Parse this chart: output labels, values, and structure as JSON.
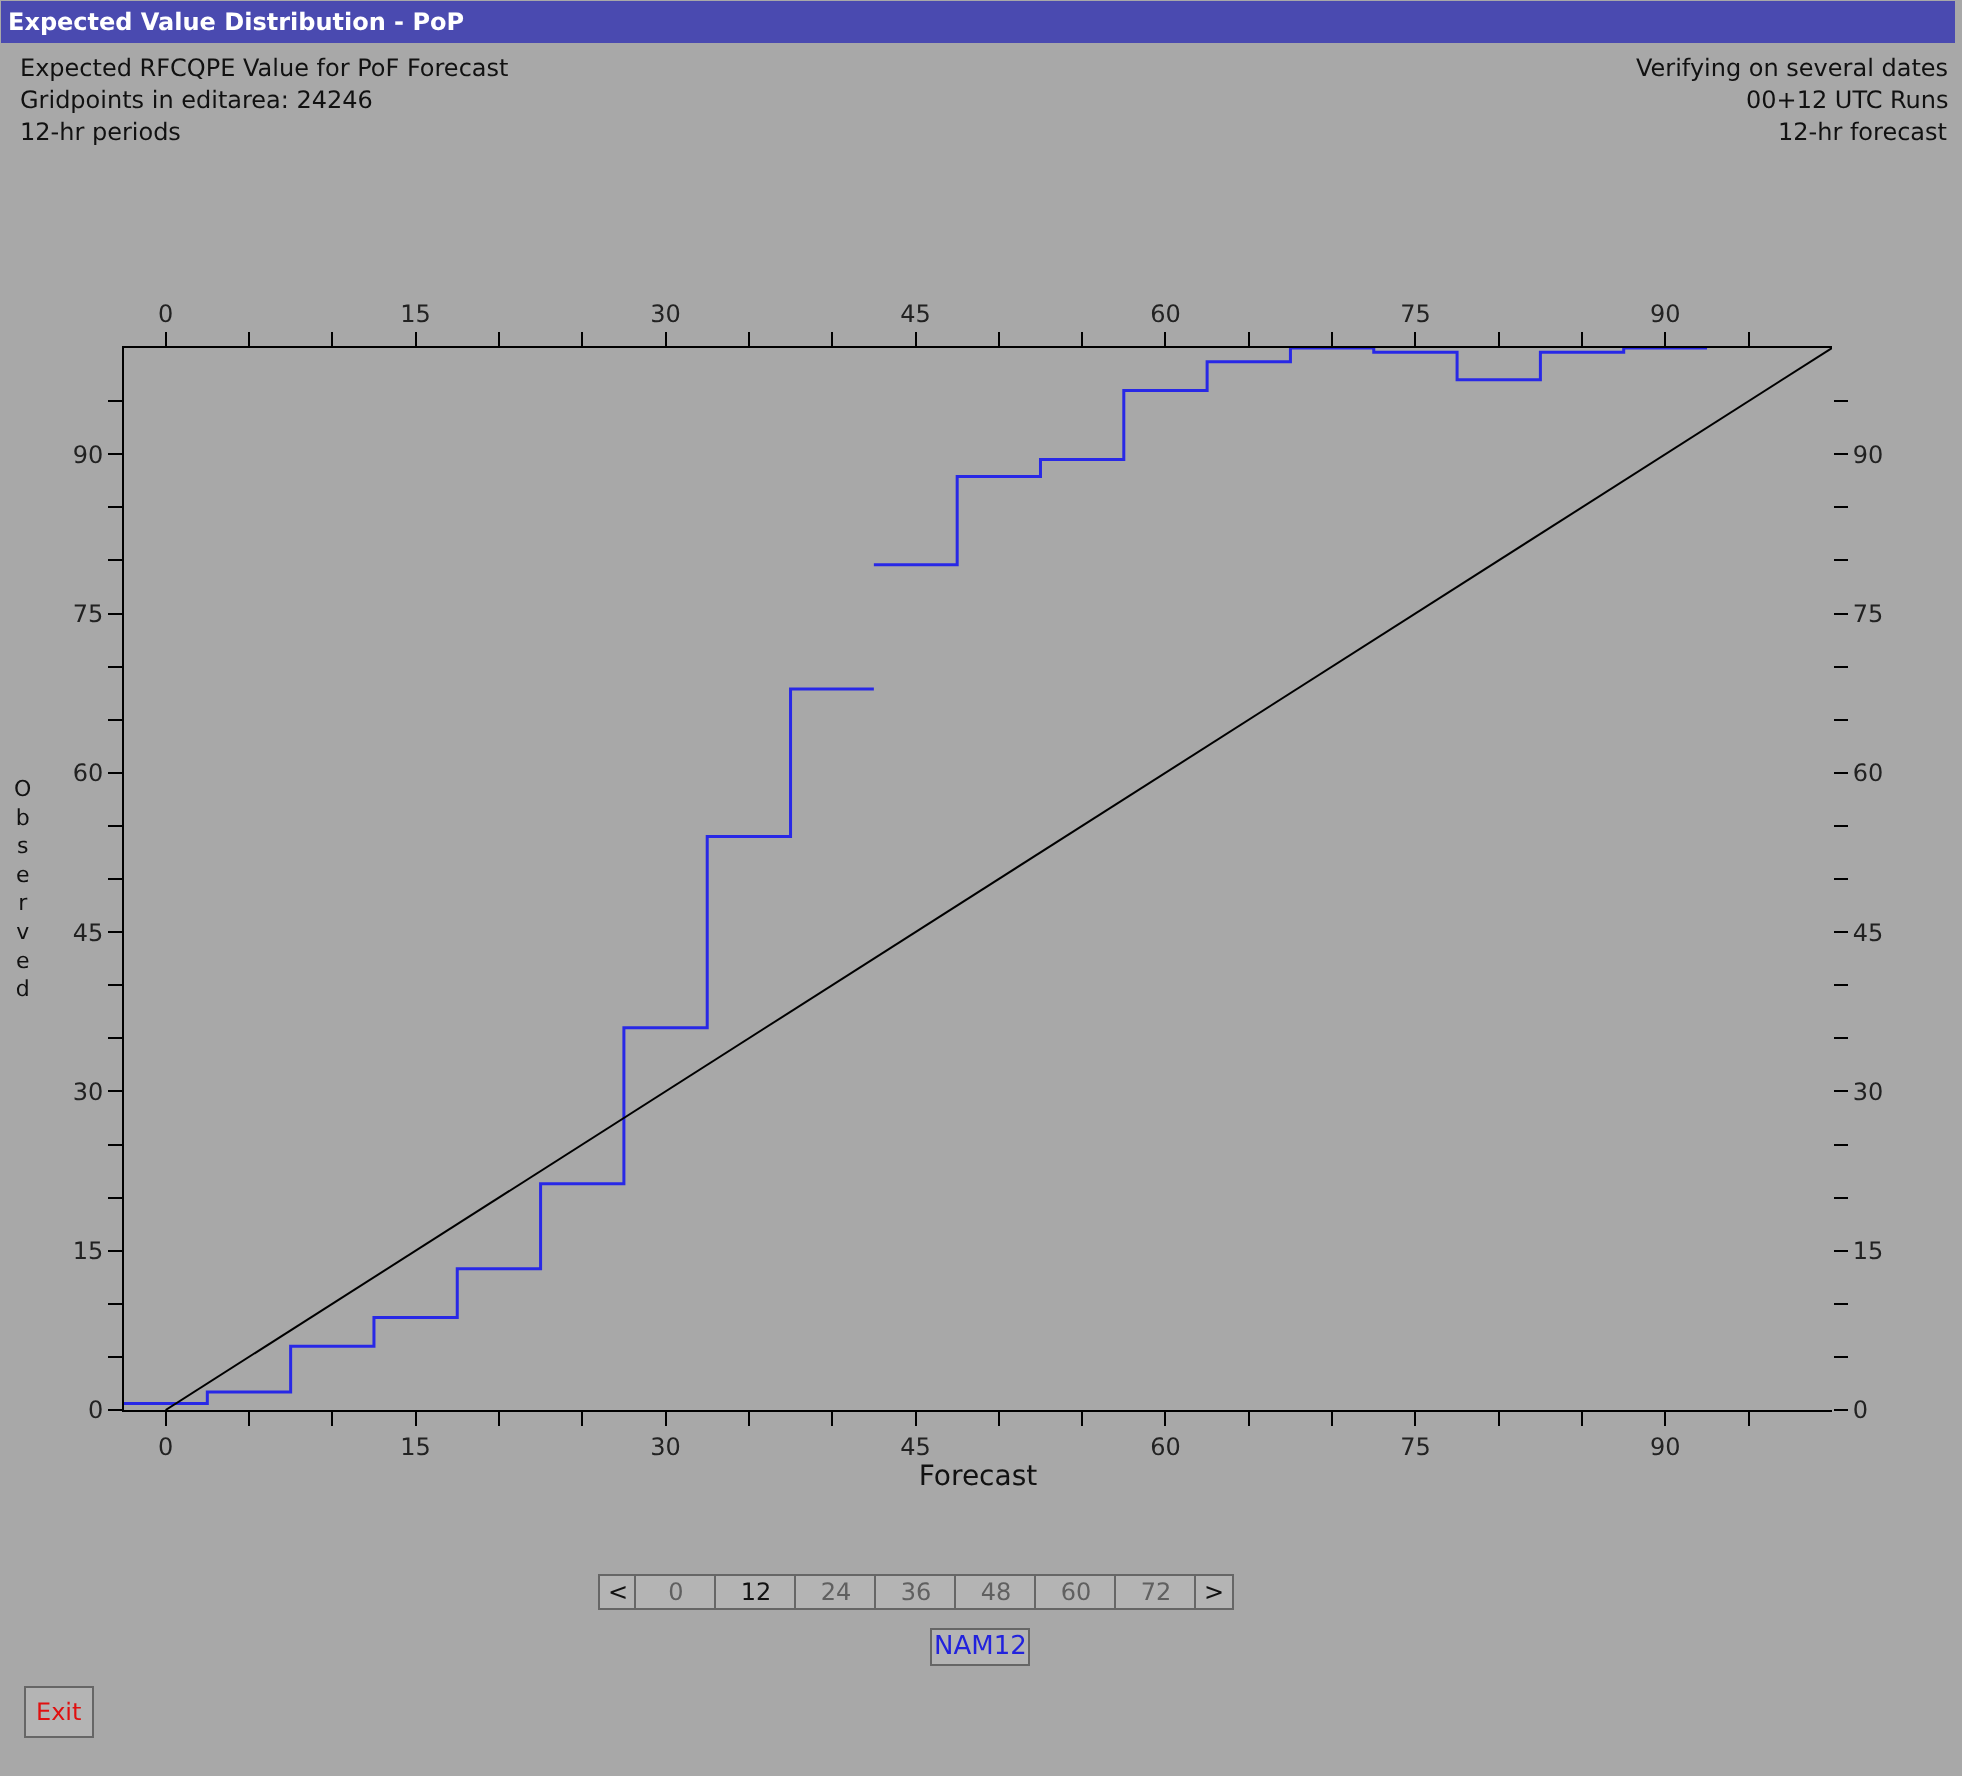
{
  "chart_data": {
    "type": "step",
    "title": "Expected Value Distribution - PoP",
    "xlabel": "Forecast",
    "ylabel": "Observed",
    "series": [
      {
        "color": "#2828e6",
        "x": [
          -2.5,
          2.5,
          7.5,
          12.5,
          17.5,
          22.5,
          27.5,
          32.5,
          37.5,
          42.5
        ],
        "values": [
          0.6,
          1.7,
          6.0,
          8.7,
          13.3,
          21.3,
          36.0,
          54.0,
          67.9,
          67.9
        ]
      },
      {
        "color": "#2828e6",
        "x": [
          42.5,
          47.5,
          52.5,
          57.5,
          62.5,
          67.5,
          72.5,
          77.5,
          82.5,
          87.5,
          92.5
        ],
        "values": [
          79.6,
          87.9,
          89.5,
          96.0,
          98.7,
          100,
          99.6,
          97.0,
          99.6,
          100,
          100
        ]
      },
      {
        "type": "line",
        "color": "#000000",
        "x": [
          0,
          100
        ],
        "values": [
          0,
          100
        ]
      }
    ],
    "xlim": [
      -2.5,
      100
    ],
    "ylim": [
      0,
      100
    ],
    "x2lim": [
      -2.5,
      100
    ],
    "y2lim": [
      0,
      100
    ],
    "xticks": [
      0,
      {
        "value": 5,
        "label": null
      },
      {
        "value": 10,
        "label": null
      },
      15,
      {
        "value": 20,
        "label": null
      },
      {
        "value": 25,
        "label": null
      },
      30,
      {
        "value": 35,
        "label": null
      },
      {
        "value": 40,
        "label": null
      },
      45,
      {
        "value": 50,
        "label": null
      },
      {
        "value": 55,
        "label": null
      },
      60,
      {
        "value": 65,
        "label": null
      },
      {
        "value": 70,
        "label": null
      },
      75,
      {
        "value": 80,
        "label": null
      },
      {
        "value": 85,
        "label": null
      },
      90,
      {
        "value": 95,
        "label": null
      }
    ],
    "x2ticks": [
      0,
      {
        "value": 5,
        "label": null
      },
      {
        "value": 10,
        "label": null
      },
      15,
      {
        "value": 20,
        "label": null
      },
      {
        "value": 25,
        "label": null
      },
      30,
      {
        "value": 35,
        "label": null
      },
      {
        "value": 40,
        "label": null
      },
      45,
      {
        "value": 50,
        "label": null
      },
      {
        "value": 55,
        "label": null
      },
      60,
      {
        "value": 65,
        "label": null
      },
      {
        "value": 70,
        "label": null
      },
      75,
      {
        "value": 80,
        "label": null
      },
      {
        "value": 85,
        "label": null
      },
      90,
      {
        "value": 95,
        "label": null
      }
    ],
    "yticks": [
      0,
      {
        "value": 5,
        "label": null
      },
      {
        "value": 10,
        "label": null
      },
      15,
      {
        "value": 20,
        "label": null
      },
      {
        "value": 25,
        "label": null
      },
      30,
      {
        "value": 35,
        "label": null
      },
      {
        "value": 40,
        "label": null
      },
      45,
      {
        "value": 50,
        "label": null
      },
      {
        "value": 55,
        "label": null
      },
      60,
      {
        "value": 65,
        "label": null
      },
      {
        "value": 70,
        "label": null
      },
      75,
      {
        "value": 80,
        "label": null
      },
      {
        "value": 85,
        "label": null
      },
      90,
      {
        "value": 95,
        "label": null
      }
    ],
    "y2ticks": [
      0,
      {
        "value": 5,
        "label": null
      },
      {
        "value": 10,
        "label": null
      },
      15,
      {
        "value": 20,
        "label": null
      },
      {
        "value": 25,
        "label": null
      },
      30,
      {
        "value": 35,
        "label": null
      },
      {
        "value": 40,
        "label": null
      },
      45,
      {
        "value": 50,
        "label": null
      },
      {
        "value": 55,
        "label": null
      },
      60,
      {
        "value": 65,
        "label": null
      },
      {
        "value": 70,
        "label": null
      },
      75,
      {
        "value": 80,
        "label": null
      },
      {
        "value": 85,
        "label": null
      },
      90,
      {
        "value": 95,
        "label": null
      }
    ],
    "grid": false,
    "annotations": [
      "Expected RFCQPE Value for PoF Forecast",
      "Gridpoints in editarea: 24246",
      "12-hr periods",
      "Verifying on several dates",
      "00+12 UTC Runs",
      "12-hr forecast",
      "<",
      "0",
      "12",
      "24",
      "36",
      "48",
      "60",
      "72",
      ">",
      "NAM12",
      "Exit"
    ]
  }
}
